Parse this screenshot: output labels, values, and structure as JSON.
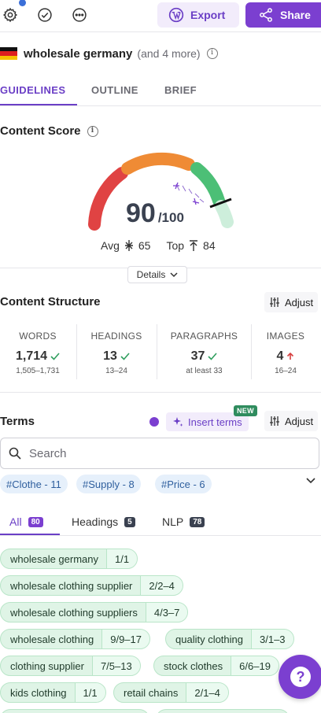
{
  "toolbar": {
    "export_label": "Export",
    "share_label": "Share"
  },
  "keyword": {
    "main": "wholesale germany",
    "more": "(and 4 more)",
    "flag": "Germany"
  },
  "tabs": [
    {
      "label": "GUIDELINES",
      "active": true
    },
    {
      "label": "OUTLINE",
      "active": false
    },
    {
      "label": "BRIEF",
      "active": false
    }
  ],
  "content_score": {
    "title": "Content Score",
    "score": "90",
    "max": "/100",
    "avg_label": "Avg",
    "avg_value": "65",
    "top_label": "Top",
    "top_value": "84",
    "details_label": "Details"
  },
  "content_structure": {
    "title": "Content Structure",
    "adjust_label": "Adjust",
    "stats": [
      {
        "label": "WORDS",
        "value": "1,714",
        "status": "ok",
        "range": "1,505–1,731"
      },
      {
        "label": "HEADINGS",
        "value": "13",
        "status": "ok",
        "range": "13–24"
      },
      {
        "label": "PARAGRAPHS",
        "value": "37",
        "status": "ok",
        "range": "at least 33"
      },
      {
        "label": "IMAGES",
        "value": "4",
        "status": "up",
        "range": "16–24"
      }
    ]
  },
  "terms": {
    "title": "Terms",
    "insert_label": "Insert terms",
    "new_badge": "NEW",
    "adjust_label": "Adjust",
    "search_placeholder": "Search",
    "chips": [
      "#Clothe - 11",
      "#Supply - 8",
      "#Price - 6"
    ],
    "subtabs": [
      {
        "label": "All",
        "count": "80",
        "active": true
      },
      {
        "label": "Headings",
        "count": "5",
        "active": false
      },
      {
        "label": "NLP",
        "count": "78",
        "active": false
      }
    ],
    "items": [
      {
        "term": "wholesale germany",
        "count": "1/1"
      },
      {
        "term": "wholesale clothing supplier",
        "count": "2/2–4"
      },
      {
        "term": "wholesale clothing suppliers",
        "count": "4/3–7"
      },
      {
        "term": "wholesale clothing",
        "count": "9/9–17"
      },
      {
        "term": "quality clothing",
        "count": "3/1–3"
      },
      {
        "term": "clothing supplier",
        "count": "7/5–13"
      },
      {
        "term": "stock clothes",
        "count": "6/6–19"
      },
      {
        "term": "kids clothing",
        "count": "1/1"
      },
      {
        "term": "retail chains",
        "count": "2/1–4"
      }
    ]
  },
  "colors": {
    "accent": "#7b3fd0",
    "gauge_red": "#e04343",
    "gauge_orange": "#ef8b35",
    "gauge_green": "#4cbf76",
    "term_bg": "#dff4e6"
  }
}
